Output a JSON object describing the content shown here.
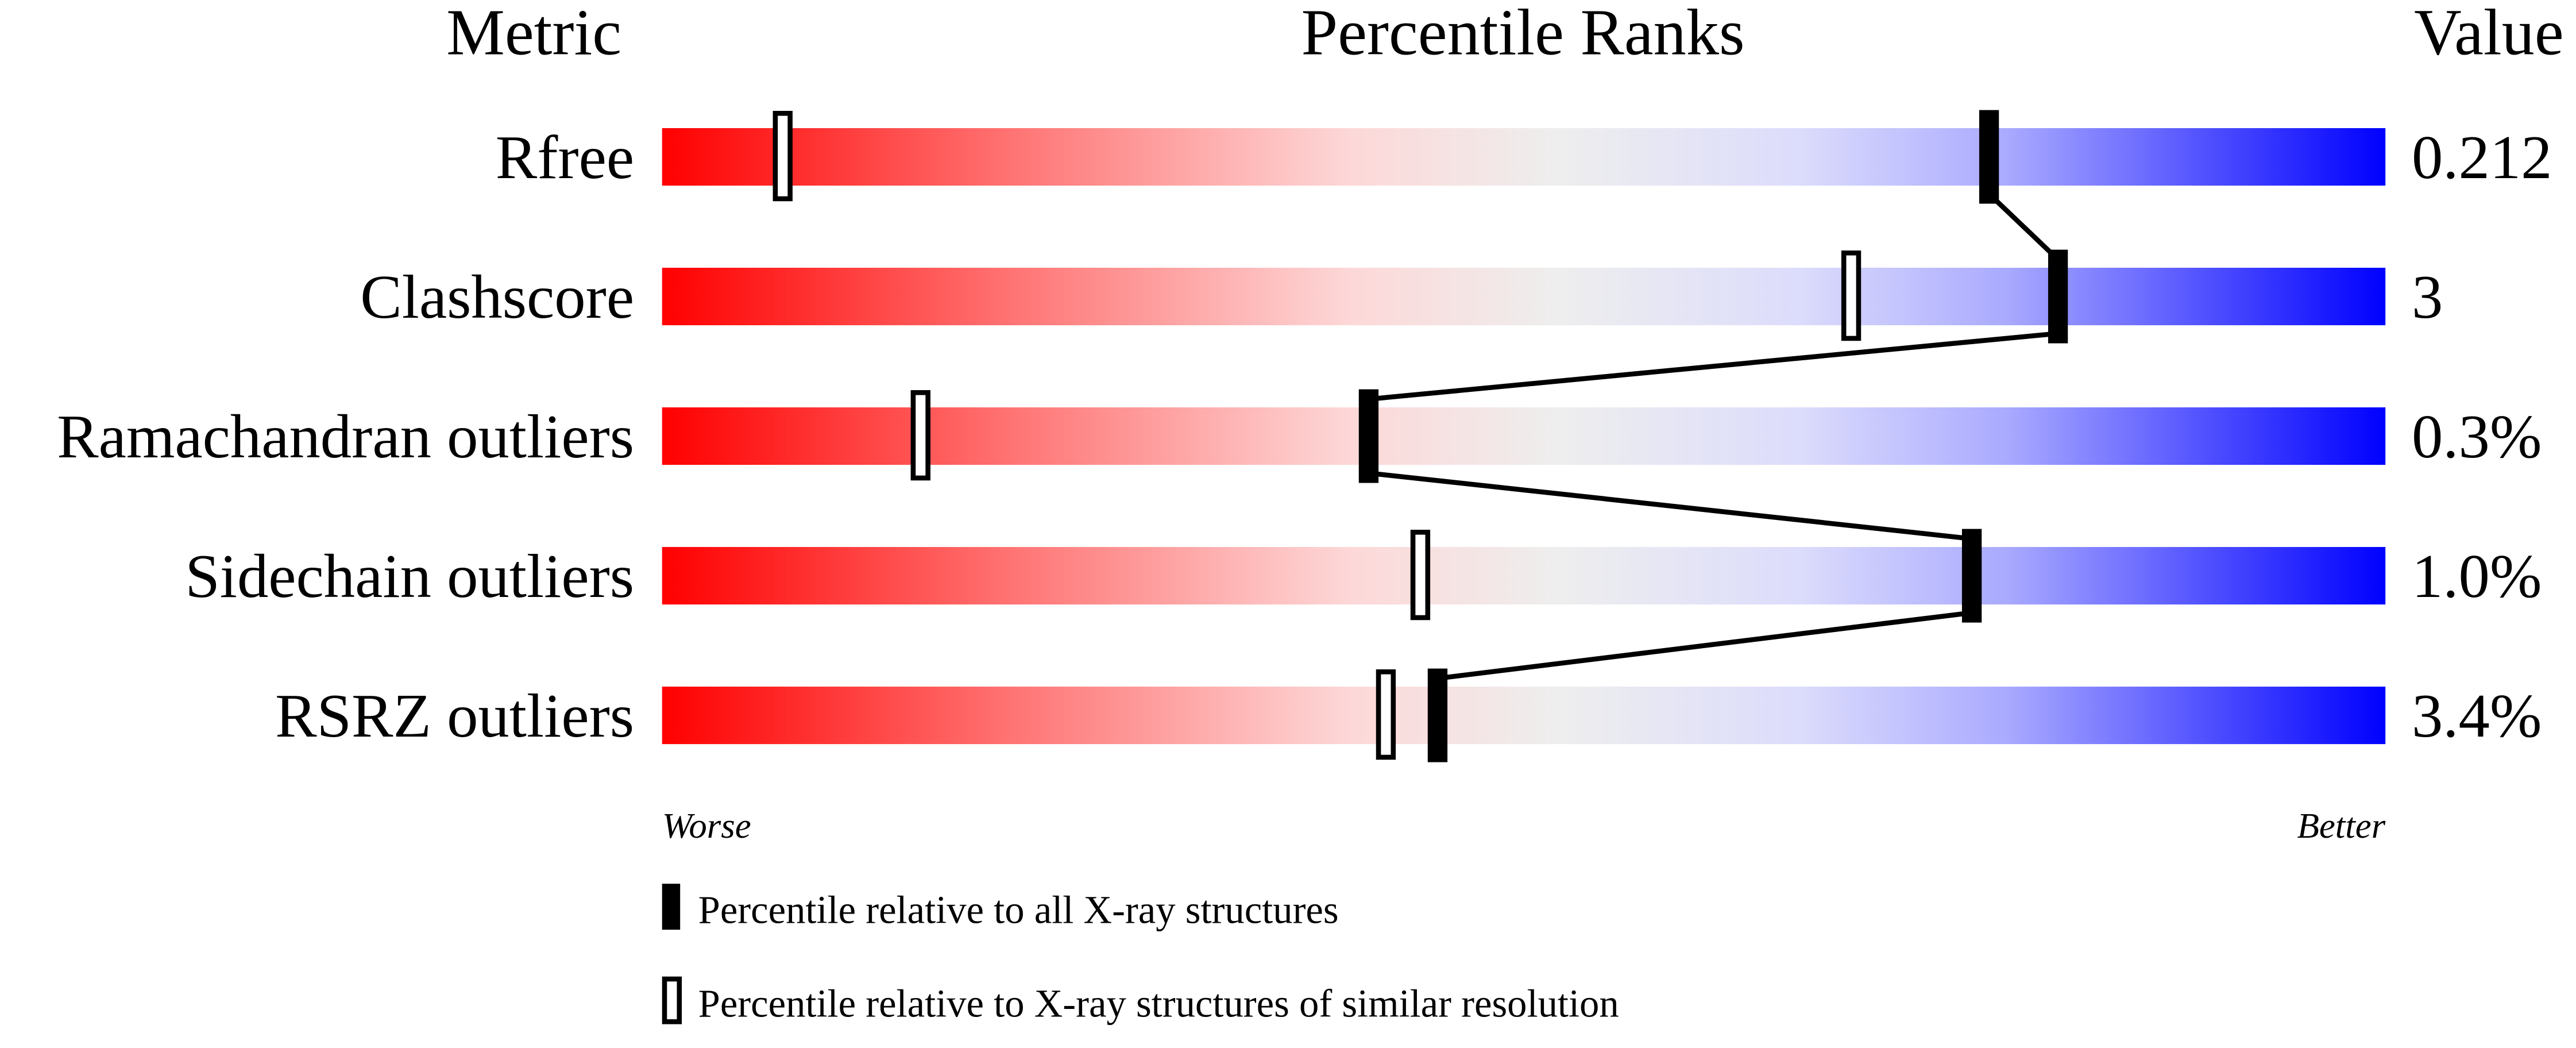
{
  "chart_data": {
    "type": "percentile-slider",
    "headers": {
      "metric": "Metric",
      "ranks": "Percentile Ranks",
      "value": "Value"
    },
    "xlim": [
      0,
      100
    ],
    "axis_labels": {
      "left": "Worse",
      "right": "Better"
    },
    "gradient_colors": [
      "#ff0000",
      "#ff7272",
      "#fdd8d8",
      "#eeeeee",
      "#dcdcfc",
      "#aaaaff",
      "#0000ff"
    ],
    "rows": [
      {
        "metric": "Rfree",
        "value": "0.212",
        "all_percentile": 77,
        "similar_percentile": 7
      },
      {
        "metric": "Clashscore",
        "value": "3",
        "all_percentile": 81,
        "similar_percentile": 69
      },
      {
        "metric": "Ramachandran outliers",
        "value": "0.3%",
        "all_percentile": 41,
        "similar_percentile": 15
      },
      {
        "metric": "Sidechain outliers",
        "value": "1.0%",
        "all_percentile": 76,
        "similar_percentile": 44
      },
      {
        "metric": "RSRZ outliers",
        "value": "3.4%",
        "all_percentile": 45,
        "similar_percentile": 42
      }
    ],
    "legend": [
      {
        "marker": "filled",
        "label": "Percentile relative to all X-ray structures"
      },
      {
        "marker": "open",
        "label": "Percentile relative to X-ray structures of similar resolution"
      }
    ]
  }
}
